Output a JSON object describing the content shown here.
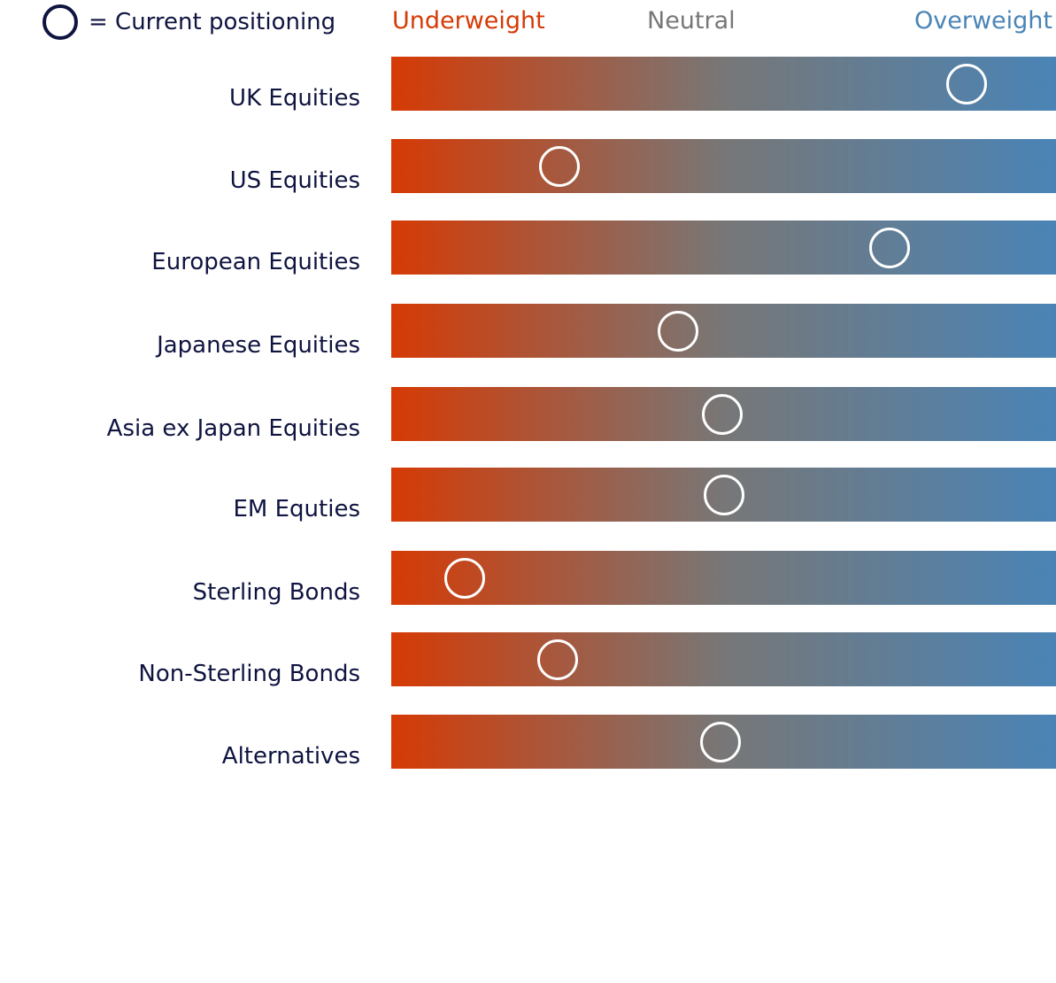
{
  "legend": {
    "text": "= Current positioning"
  },
  "scale": {
    "underweight": "Underweight",
    "neutral": "Neutral",
    "overweight": "Overweight"
  },
  "colors": {
    "underweight": "#d63a05",
    "neutral": "#777777",
    "overweight": "#4a84b6",
    "text": "#0f1440",
    "marker": "#ffffff"
  },
  "chart_data": {
    "type": "bar",
    "categories": [
      "UK Equities",
      "US Equities",
      "European Equities",
      "Japanese Equities",
      "Asia  ex Japan Equities",
      "EM Equties",
      "Sterling Bonds",
      "Non-Sterling Bonds",
      "Alternatives"
    ],
    "values": [
      0.866,
      0.253,
      0.75,
      0.431,
      0.498,
      0.5,
      0.11,
      0.25,
      0.495
    ],
    "xlim": [
      0,
      1
    ],
    "grid": false,
    "legend": "top-left"
  }
}
